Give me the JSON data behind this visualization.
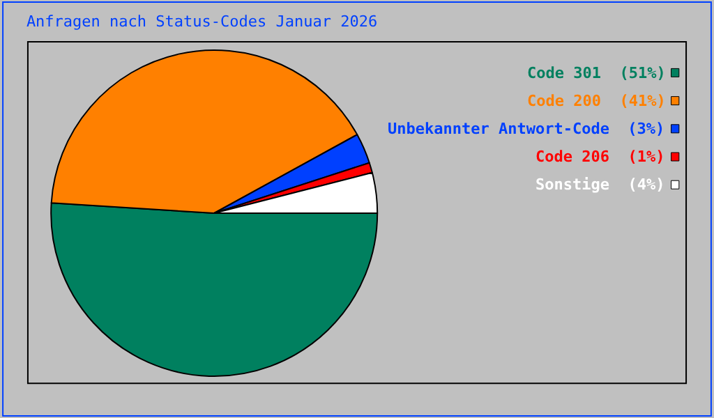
{
  "chart_data": {
    "type": "pie",
    "title": "Anfragen nach Status-Codes Januar 2026",
    "categories": [
      "Code 301",
      "Code 200",
      "Unbekannter Antwort-Code",
      "Code 206",
      "Sonstige"
    ],
    "values": [
      51,
      41,
      3,
      1,
      4
    ],
    "value_labels": [
      "(51%)",
      "(41%)",
      "(3%)",
      "(1%)",
      "(4%)"
    ],
    "colors": [
      "#00805f",
      "#ff8000",
      "#0040ff",
      "#ff0000",
      "#ffffff"
    ],
    "legend": "top right"
  }
}
